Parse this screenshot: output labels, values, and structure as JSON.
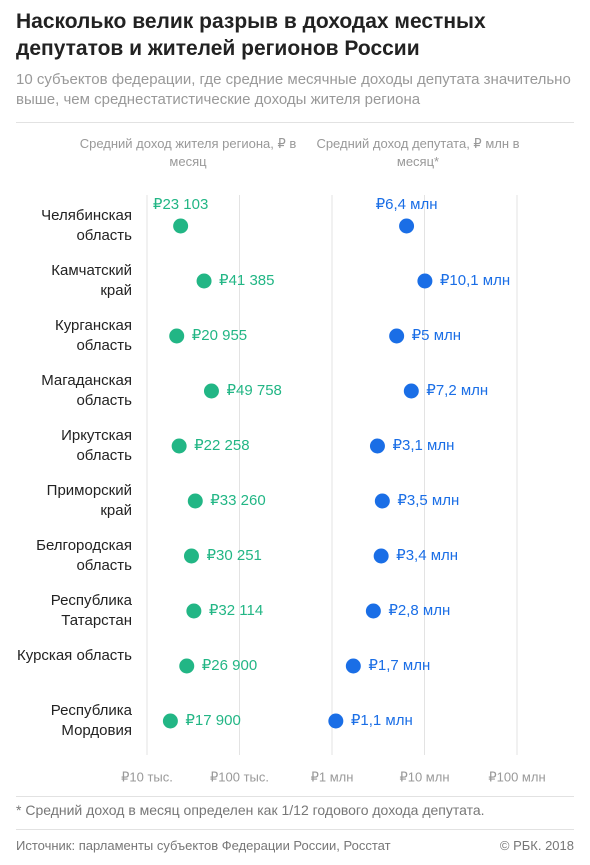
{
  "chart_data": {
    "type": "dot",
    "title": "Насколько велик разрыв в доходах местных депутатов и жителей регионов России",
    "subtitle": "10 субъектов федерации, где средние месячные доходы депутата значительно выше, чем среднестатистические доходы жителя региона",
    "categories": [
      "Челябинская область",
      "Камчатский край",
      "Курганская область",
      "Магаданская область",
      "Иркутская область",
      "Приморский край",
      "Белгородская область",
      "Республика Татарстан",
      "Курская область",
      "Республика Мордовия"
    ],
    "series": [
      {
        "name": "Средний доход жителя региона, ₽ в месяц",
        "color": "#22b685",
        "values": [
          23103,
          41385,
          20955,
          49758,
          22258,
          33260,
          30251,
          32114,
          26900,
          17900
        ],
        "value_labels": [
          "₽23 103",
          "₽41 385",
          "₽20 955",
          "₽49 758",
          "₽22 258",
          "₽33 260",
          "₽30 251",
          "₽32 114",
          "₽26 900",
          "₽17 900"
        ]
      },
      {
        "name": "Средний доход депутата, ₽ млн в месяц*",
        "color": "#1a6ee6",
        "values": [
          6400000,
          10100000,
          5000000,
          7200000,
          3100000,
          3500000,
          3400000,
          2800000,
          1700000,
          1100000
        ],
        "value_labels": [
          "₽6,4 млн",
          "₽10,1 млн",
          "₽5 млн",
          "₽7,2 млн",
          "₽3,1 млн",
          "₽3,5 млн",
          "₽3,4 млн",
          "₽2,8 млн",
          "₽1,7 млн",
          "₽1,1 млн"
        ]
      }
    ],
    "xscale": "log",
    "xlim": [
      10000,
      100000000
    ],
    "xticks": [
      {
        "value": 10000,
        "label": "₽10 тыс."
      },
      {
        "value": 100000,
        "label": "₽100 тыс."
      },
      {
        "value": 1000000,
        "label": "₽1 млн"
      },
      {
        "value": 10000000,
        "label": "₽10 млн"
      },
      {
        "value": 100000000,
        "label": "₽100 млн"
      }
    ],
    "grid": true,
    "footnote": "* Средний доход в месяц определен как 1/12 годового дохода депутата.",
    "source": "Источник: парламенты субъектов Федерации России, Росстат",
    "copyright": "© РБК. 2018"
  }
}
